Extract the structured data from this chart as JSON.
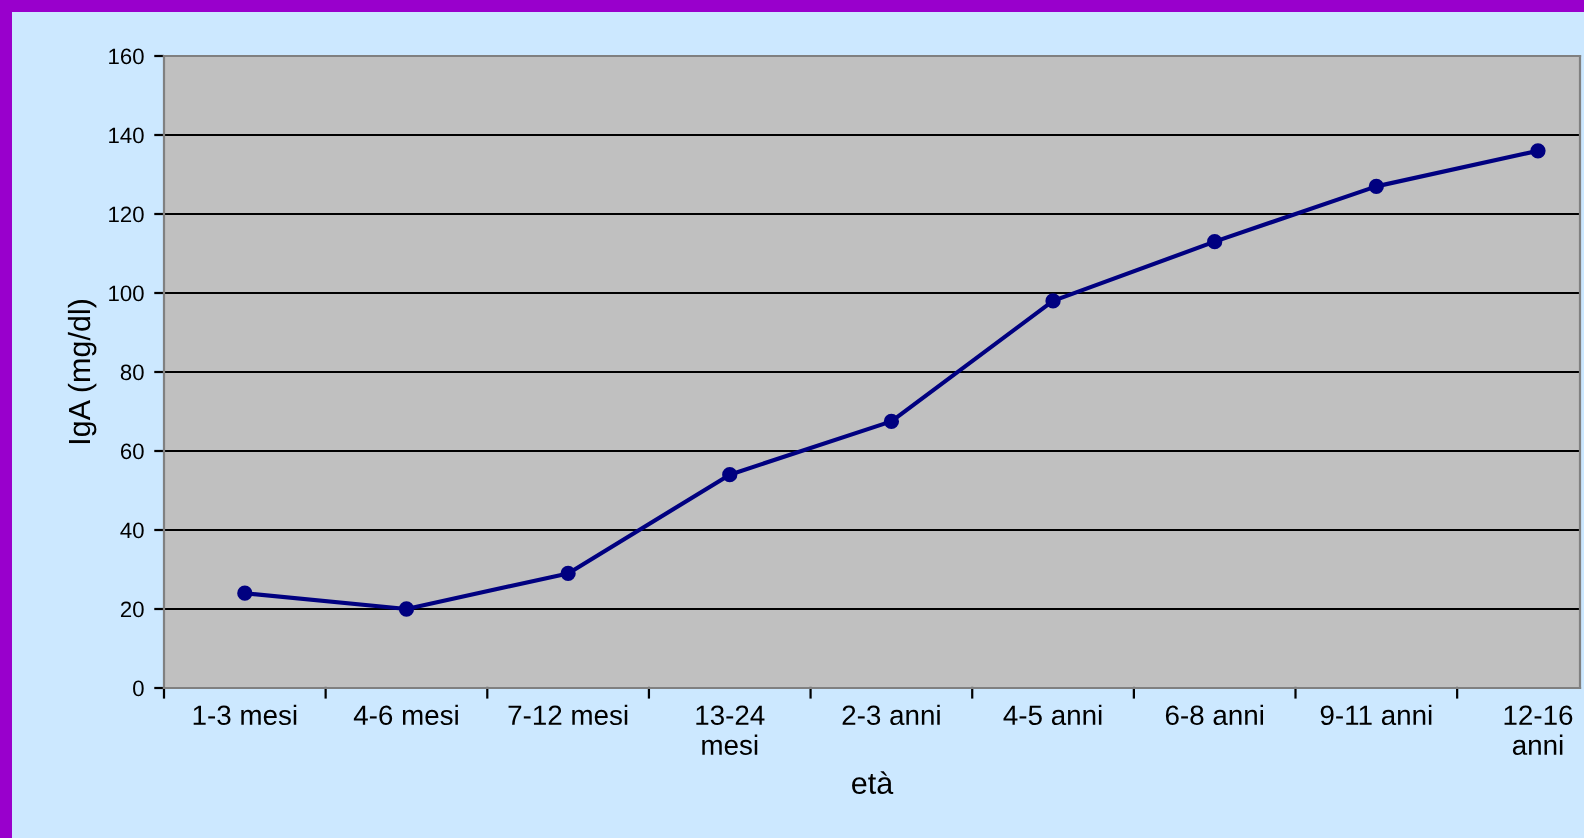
{
  "chart_data": {
    "type": "line",
    "xlabel": "età",
    "ylabel": "IgA (mg/dl)",
    "categories": [
      "1-3 mesi",
      "4-6 mesi",
      "7-12 mesi",
      "13-24\nmesi",
      "2-3 anni",
      "4-5 anni",
      "6-8 anni",
      "9-11 anni",
      "12-16\nanni"
    ],
    "series": [
      {
        "color": "#000080",
        "values": [
          24,
          20,
          29,
          54,
          67.5,
          98,
          113,
          127,
          136
        ]
      }
    ],
    "ylim": [
      0,
      160
    ],
    "yticks": [
      0,
      20,
      40,
      60,
      80,
      100,
      120,
      140,
      160
    ],
    "grid": "y",
    "marker": "circle",
    "line_style": "solid",
    "legend": false
  }
}
